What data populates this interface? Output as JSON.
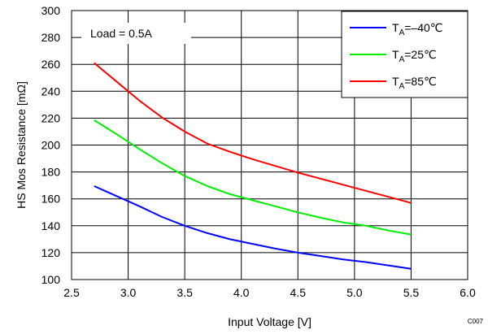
{
  "chart_data": {
    "type": "line",
    "xlabel": "Input Voltage [V]",
    "ylabel": "HS Mos Resistance [mΩ]",
    "xlim": [
      2.5,
      6.0
    ],
    "ylim": [
      100,
      300
    ],
    "xticks": [
      "2.5",
      "3.0",
      "3.5",
      "4.0",
      "4.5",
      "5.0",
      "5.5",
      "6.0"
    ],
    "yticks": [
      "100",
      "120",
      "140",
      "160",
      "180",
      "200",
      "220",
      "240",
      "260",
      "280",
      "300"
    ],
    "grid": true,
    "legend_position": "top-right",
    "annotation": "Load = 0.5A",
    "figure_id": "C007",
    "series": [
      {
        "label_main": "T",
        "label_sub": "A",
        "label_rest": "=–40℃",
        "color": "#0000ff",
        "x": [
          2.7,
          2.9,
          3.1,
          3.3,
          3.5,
          3.7,
          3.9,
          4.1,
          4.3,
          4.5,
          4.7,
          4.9,
          5.1,
          5.3,
          5.5
        ],
        "y": [
          169.5,
          162,
          154.5,
          146.5,
          140,
          134.5,
          130,
          126.5,
          123,
          120,
          117.5,
          115,
          113,
          110.5,
          108
        ]
      },
      {
        "label_main": "T",
        "label_sub": "A",
        "label_rest": "=25℃",
        "color": "#00ee00",
        "x": [
          2.7,
          2.9,
          3.1,
          3.3,
          3.5,
          3.7,
          3.9,
          4.1,
          4.3,
          4.5,
          4.7,
          4.9,
          5.1,
          5.3,
          5.5
        ],
        "y": [
          218.5,
          208,
          197,
          186.5,
          177,
          169.5,
          163.5,
          159,
          154.5,
          150,
          146,
          142.5,
          140,
          136.5,
          133.5
        ]
      },
      {
        "label_main": "T",
        "label_sub": "A",
        "label_rest": "=85℃",
        "color": "#ff0000",
        "x": [
          2.7,
          2.9,
          3.1,
          3.3,
          3.5,
          3.7,
          3.9,
          4.1,
          4.3,
          4.5,
          4.7,
          4.9,
          5.1,
          5.3,
          5.5
        ],
        "y": [
          261,
          247,
          233,
          220.5,
          210,
          201,
          195,
          189.5,
          184.5,
          179.5,
          175,
          170.5,
          166,
          161.5,
          157
        ]
      }
    ]
  }
}
